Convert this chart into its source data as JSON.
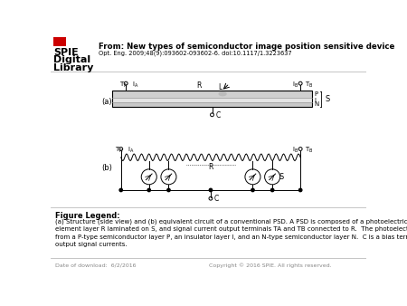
{
  "bg_color": "#ffffff",
  "header_title": "From: New types of semiconductor image position sensitive device",
  "header_subtitle": "Opt. Eng. 2009;48(9):093602-093602-6. doi:10.1117/1.3223637",
  "figure_legend_title": "Figure Legend:",
  "figure_legend_text": "(a) Structure (side view) and (b) equivalent circuit of a conventional PSD. A PSD is composed of a photoelectric layer S, a resistive\nelement layer R laminated on S, and signal current output terminals TA and TB connected to R.  The photoelectric layer S is formed\nfrom a P-type semiconductor layer P, an insulator layer I, and an N-type semiconductor layer N.  C is a bias terminal.  IA and IB are\noutput signal currents.",
  "footer_left": "Date of download:  6/2/2016",
  "footer_right": "Copyright © 2016 SPIE. All rights reserved.",
  "line_color": "#000000",
  "spie_color": "#cc0000",
  "gray_layer": "#d4d4d4",
  "light_layer": "#e8e8e8",
  "sep_color": "#bbbbbb"
}
